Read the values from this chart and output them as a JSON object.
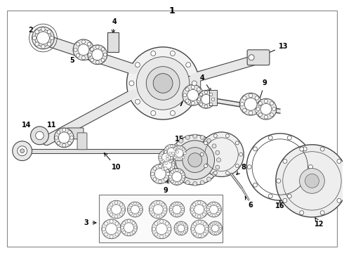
{
  "title": "1",
  "bg_color": "#ffffff",
  "border_color": "#aaaaaa",
  "line_color": "#444444",
  "label_fontsize": 7.0,
  "title_fontsize": 9,
  "fig_width": 4.9,
  "fig_height": 3.6,
  "dpi": 100
}
